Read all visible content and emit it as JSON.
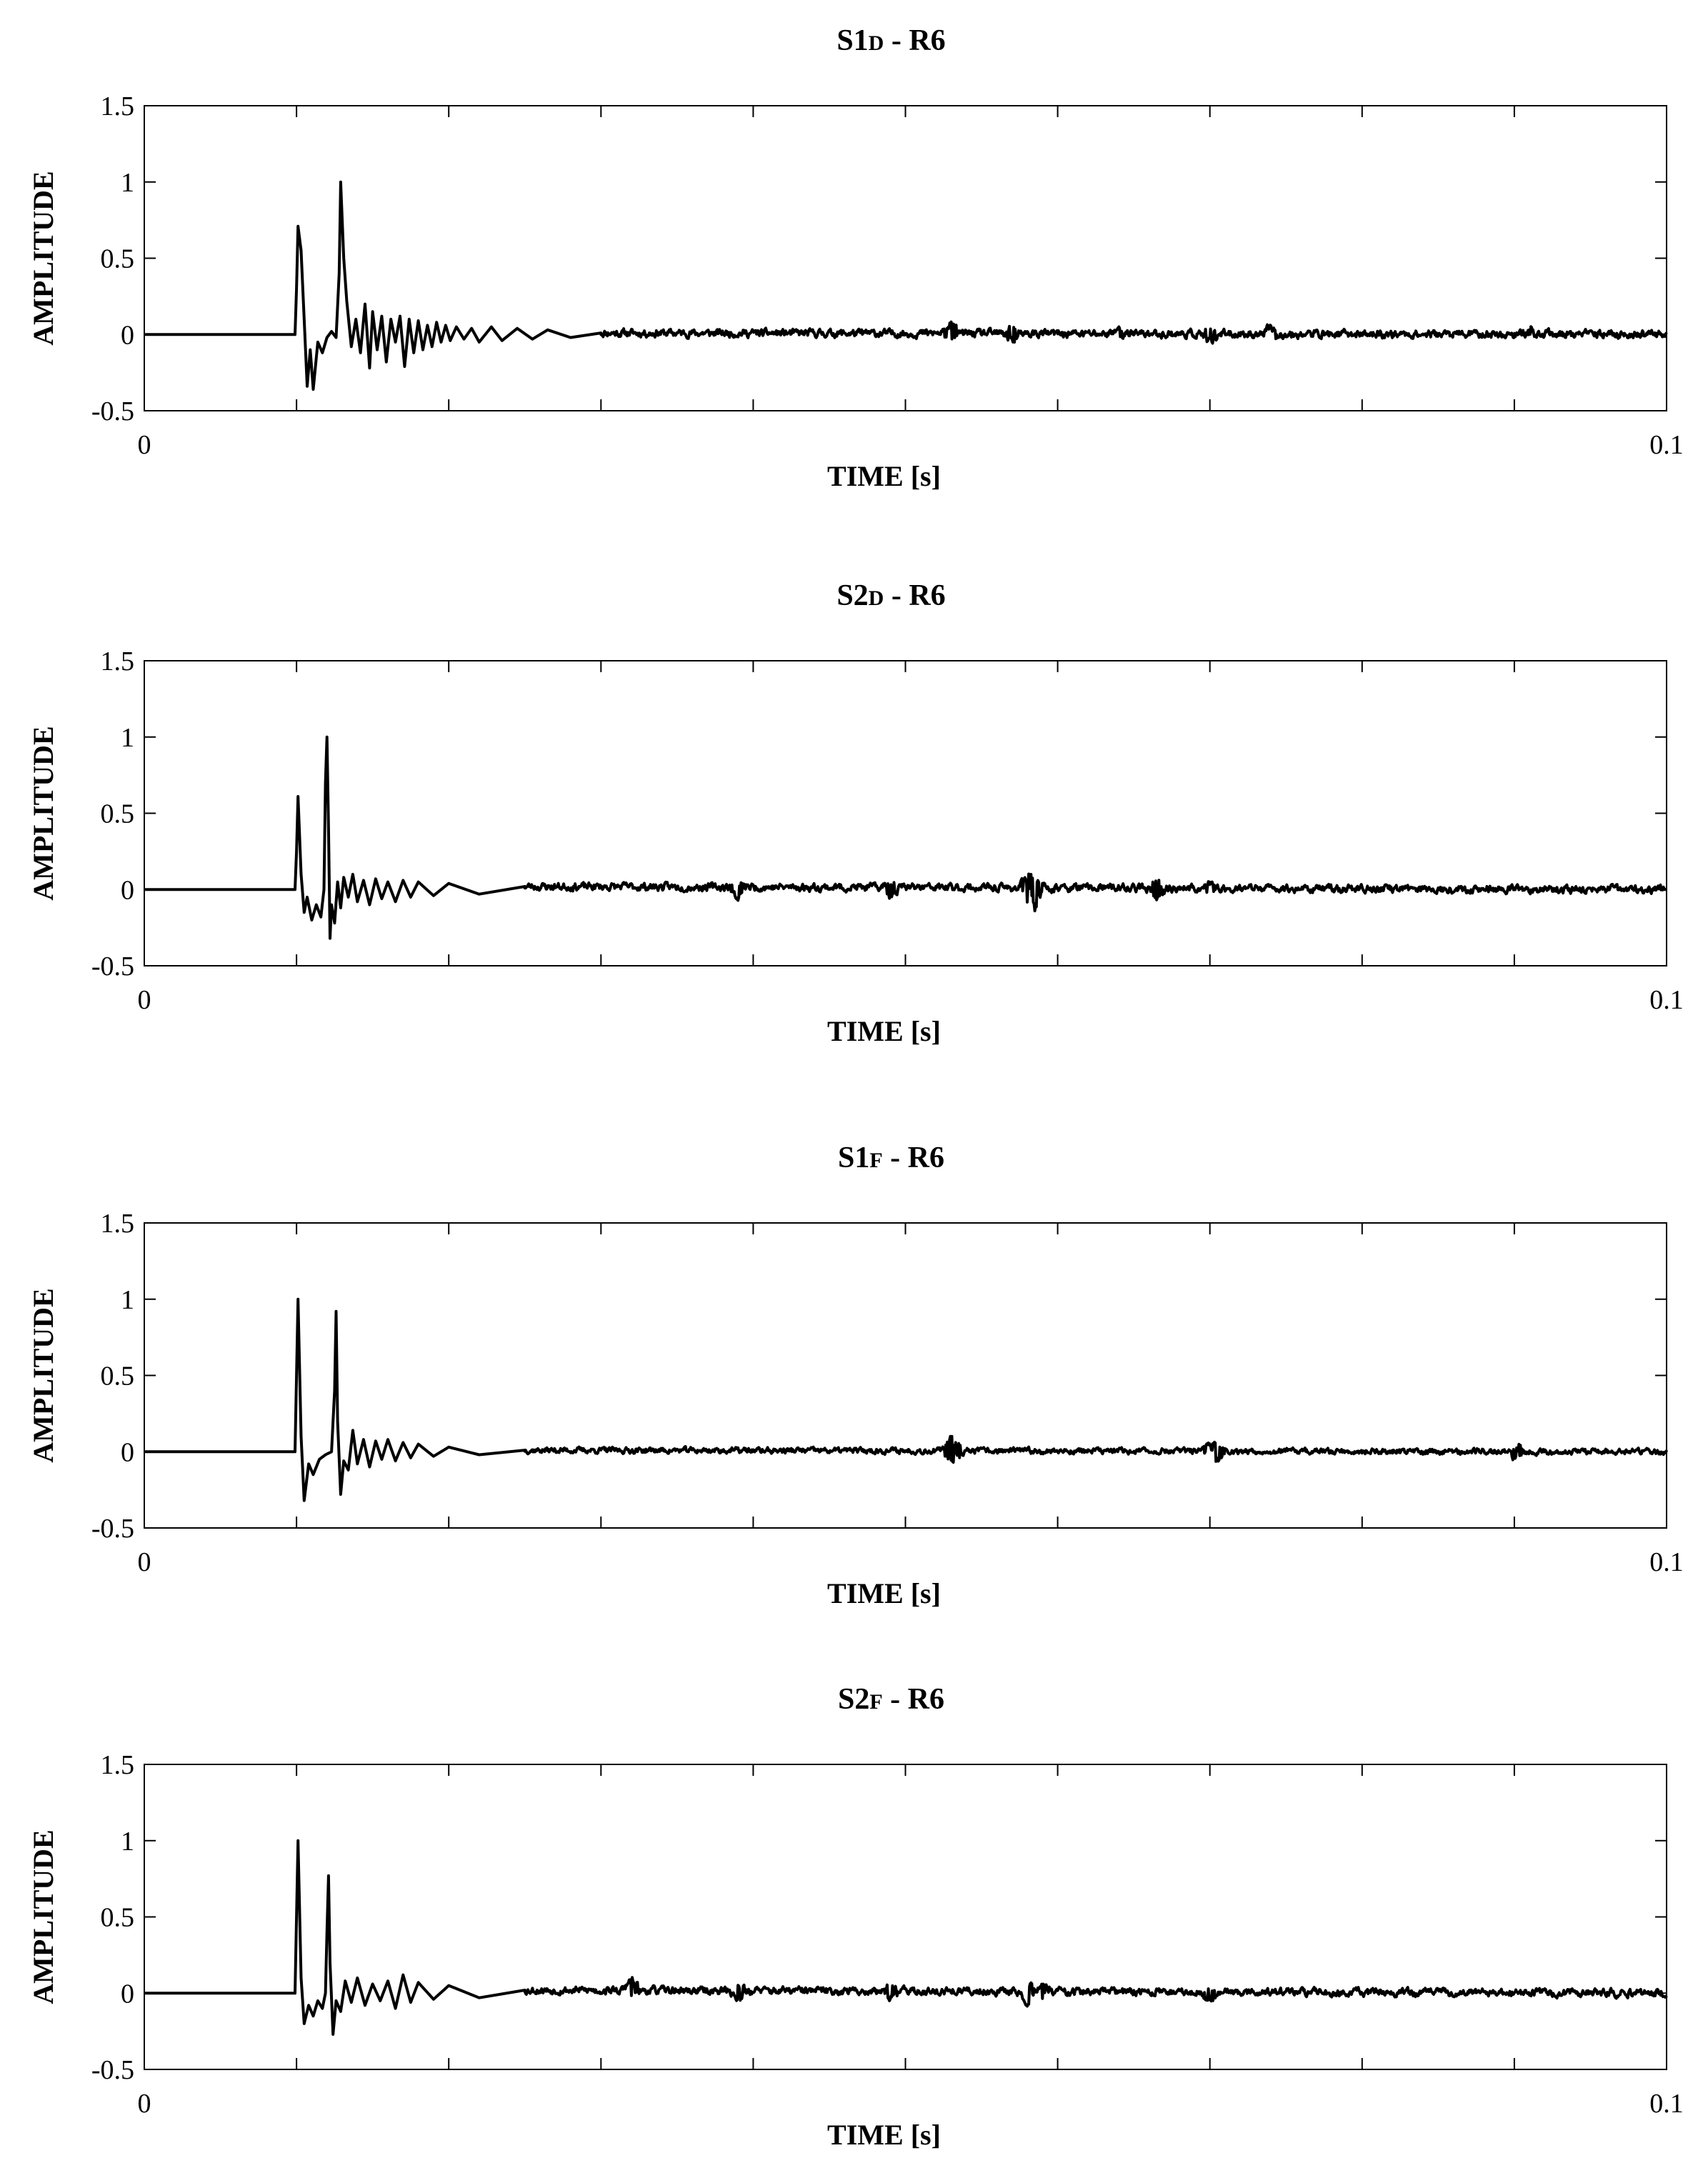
{
  "chart_data": [
    {
      "type": "line",
      "title": "S1",
      "title_sub": "D",
      "title_suffix": " - R6",
      "xlabel": "TIME [s]",
      "ylabel": "AMPLITUDE",
      "xlim": [
        0,
        0.1
      ],
      "ylim": [
        -0.5,
        1.5
      ],
      "xticklabels": [
        "0",
        "0.1"
      ],
      "yticks": [
        1.5,
        1,
        0.5,
        0,
        -0.5
      ],
      "yticklabels": [
        "1.5",
        "1",
        "0.5",
        "0",
        "-0.5"
      ],
      "grid": false,
      "series": [
        {
          "seed": 11,
          "x": [
            0,
            0.0099,
            0.01,
            0.0101,
            0.0103,
            0.0105,
            0.0107,
            0.0109,
            0.0111,
            0.0114,
            0.0117,
            0.012,
            0.0123,
            0.0126,
            0.0128,
            0.0129,
            0.0131,
            0.0133,
            0.0136,
            0.0139,
            0.0142,
            0.0145,
            0.0148,
            0.015,
            0.0153,
            0.0156,
            0.0159,
            0.0162,
            0.0165,
            0.0168,
            0.0171,
            0.0174,
            0.0177,
            0.018,
            0.0183,
            0.0186,
            0.0189,
            0.0192,
            0.0195,
            0.0198,
            0.0201,
            0.0205,
            0.021,
            0.0215,
            0.022,
            0.0228,
            0.0235,
            0.0245,
            0.0255,
            0.0265,
            0.028,
            0.03,
            0.1
          ],
          "y": [
            0,
            0,
            0.3,
            0.71,
            0.55,
            0.1,
            -0.34,
            -0.1,
            -0.36,
            -0.05,
            -0.12,
            -0.02,
            0.02,
            -0.02,
            0.4,
            1.0,
            0.5,
            0.22,
            -0.08,
            0.1,
            -0.12,
            0.2,
            -0.22,
            0.15,
            -0.1,
            0.12,
            -0.18,
            0.1,
            -0.05,
            0.12,
            -0.21,
            0.1,
            -0.12,
            0.09,
            -0.1,
            0.06,
            -0.08,
            0.08,
            -0.05,
            0.06,
            -0.04,
            0.05,
            -0.03,
            0.04,
            -0.05,
            0.05,
            -0.04,
            0.04,
            -0.03,
            0.03,
            -0.02,
            0.01,
            0
          ],
          "noise": 0.02,
          "events": [
            [
              0.053,
              0.07
            ],
            [
              0.057,
              -0.06
            ],
            [
              0.064,
              0.04
            ],
            [
              0.07,
              -0.06
            ],
            [
              0.074,
              0.05
            ],
            [
              0.091,
              0.03
            ]
          ]
        }
      ]
    },
    {
      "type": "line",
      "title": "S2",
      "title_sub": "D",
      "title_suffix": " - R6",
      "xlabel": "TIME [s]",
      "ylabel": "AMPLITUDE",
      "xlim": [
        0,
        0.1
      ],
      "ylim": [
        -0.5,
        1.5
      ],
      "xticklabels": [
        "0",
        "0.1"
      ],
      "yticks": [
        1.5,
        1,
        0.5,
        0,
        -0.5
      ],
      "yticklabels": [
        "1.5",
        "1",
        "0.5",
        "0",
        "-0.5"
      ],
      "grid": false,
      "series": [
        {
          "seed": 23,
          "x": [
            0,
            0.0099,
            0.01,
            0.0101,
            0.0103,
            0.0105,
            0.0107,
            0.011,
            0.0113,
            0.0116,
            0.0118,
            0.0119,
            0.012,
            0.0121,
            0.0122,
            0.0123,
            0.0125,
            0.0127,
            0.0129,
            0.0131,
            0.0134,
            0.0137,
            0.014,
            0.0144,
            0.0148,
            0.0152,
            0.0156,
            0.016,
            0.0165,
            0.017,
            0.0175,
            0.018,
            0.019,
            0.02,
            0.022,
            0.025,
            0.1
          ],
          "y": [
            0,
            0,
            0.25,
            0.61,
            0.1,
            -0.15,
            -0.05,
            -0.2,
            -0.1,
            -0.18,
            0.0,
            0.7,
            1.0,
            0.4,
            -0.32,
            -0.1,
            -0.22,
            0.05,
            -0.12,
            0.08,
            -0.05,
            0.1,
            -0.08,
            0.06,
            -0.1,
            0.07,
            -0.06,
            0.05,
            -0.08,
            0.06,
            -0.05,
            0.05,
            -0.04,
            0.04,
            -0.03,
            0.02,
            0
          ],
          "noise": 0.02,
          "events": [
            [
              0.039,
              -0.06
            ],
            [
              0.049,
              -0.06
            ],
            [
              0.058,
              0.08
            ],
            [
              0.0585,
              -0.12
            ],
            [
              0.0665,
              -0.07
            ],
            [
              0.07,
              0.04
            ]
          ]
        }
      ]
    },
    {
      "type": "line",
      "title": "S1",
      "title_sub": "F",
      "title_suffix": " - R6",
      "xlabel": "TIME [s]",
      "ylabel": "AMPLITUDE",
      "xlim": [
        0,
        0.1
      ],
      "ylim": [
        -0.5,
        1.5
      ],
      "xticklabels": [
        "0",
        "0.1"
      ],
      "yticks": [
        1.5,
        1,
        0.5,
        0,
        -0.5
      ],
      "yticklabels": [
        "1.5",
        "1",
        "0.5",
        "0",
        "-0.5"
      ],
      "grid": false,
      "series": [
        {
          "seed": 37,
          "x": [
            0,
            0.0099,
            0.01,
            0.0101,
            0.0103,
            0.0105,
            0.0108,
            0.0111,
            0.0115,
            0.0119,
            0.0123,
            0.0125,
            0.0126,
            0.0127,
            0.0129,
            0.0131,
            0.0134,
            0.0137,
            0.014,
            0.0144,
            0.0148,
            0.0152,
            0.0156,
            0.016,
            0.0165,
            0.017,
            0.0175,
            0.018,
            0.019,
            0.02,
            0.022,
            0.025,
            0.1
          ],
          "y": [
            0,
            0,
            0.5,
            1.0,
            0.1,
            -0.32,
            -0.08,
            -0.15,
            -0.05,
            -0.02,
            0.0,
            0.4,
            0.92,
            0.2,
            -0.28,
            -0.06,
            -0.12,
            0.14,
            -0.08,
            0.08,
            -0.1,
            0.07,
            -0.05,
            0.08,
            -0.06,
            0.06,
            -0.04,
            0.05,
            -0.03,
            0.03,
            -0.02,
            0.01,
            0
          ],
          "noise": 0.015,
          "events": [
            [
              0.053,
              0.1
            ],
            [
              0.0535,
              -0.05
            ],
            [
              0.07,
              0.05
            ],
            [
              0.0705,
              -0.07
            ],
            [
              0.09,
              0.04
            ],
            [
              0.0903,
              -0.03
            ]
          ]
        }
      ]
    },
    {
      "type": "line",
      "title": "S2",
      "title_sub": "F",
      "title_suffix": " - R6",
      "xlabel": "TIME [s]",
      "ylabel": "AMPLITUDE",
      "xlim": [
        0,
        0.1
      ],
      "ylim": [
        -0.5,
        1.5
      ],
      "xticklabels": [
        "0",
        "0.1"
      ],
      "yticks": [
        1.5,
        1,
        0.5,
        0,
        -0.5
      ],
      "yticklabels": [
        "1.5",
        "1",
        "0.5",
        "0",
        "-0.5"
      ],
      "grid": false,
      "series": [
        {
          "seed": 53,
          "x": [
            0,
            0.0099,
            0.01,
            0.0101,
            0.0103,
            0.0105,
            0.0108,
            0.0111,
            0.0114,
            0.0117,
            0.0119,
            0.012,
            0.0121,
            0.0122,
            0.0124,
            0.0126,
            0.0129,
            0.0132,
            0.0136,
            0.014,
            0.0145,
            0.015,
            0.0155,
            0.016,
            0.0165,
            0.017,
            0.0175,
            0.018,
            0.019,
            0.02,
            0.022,
            0.025,
            0.1
          ],
          "y": [
            0,
            0,
            0.5,
            1.0,
            0.1,
            -0.2,
            -0.08,
            -0.15,
            -0.05,
            -0.1,
            0.0,
            0.4,
            0.77,
            0.2,
            -0.27,
            -0.05,
            -0.12,
            0.08,
            -0.06,
            0.1,
            -0.08,
            0.06,
            -0.05,
            0.08,
            -0.1,
            0.12,
            -0.06,
            0.07,
            -0.04,
            0.05,
            -0.03,
            0.02,
            0
          ],
          "noise": 0.02,
          "events": [
            [
              0.032,
              0.07
            ],
            [
              0.039,
              -0.05
            ],
            [
              0.049,
              0.06
            ],
            [
              0.058,
              -0.08
            ],
            [
              0.059,
              0.05
            ],
            [
              0.07,
              -0.05
            ]
          ]
        }
      ]
    }
  ]
}
